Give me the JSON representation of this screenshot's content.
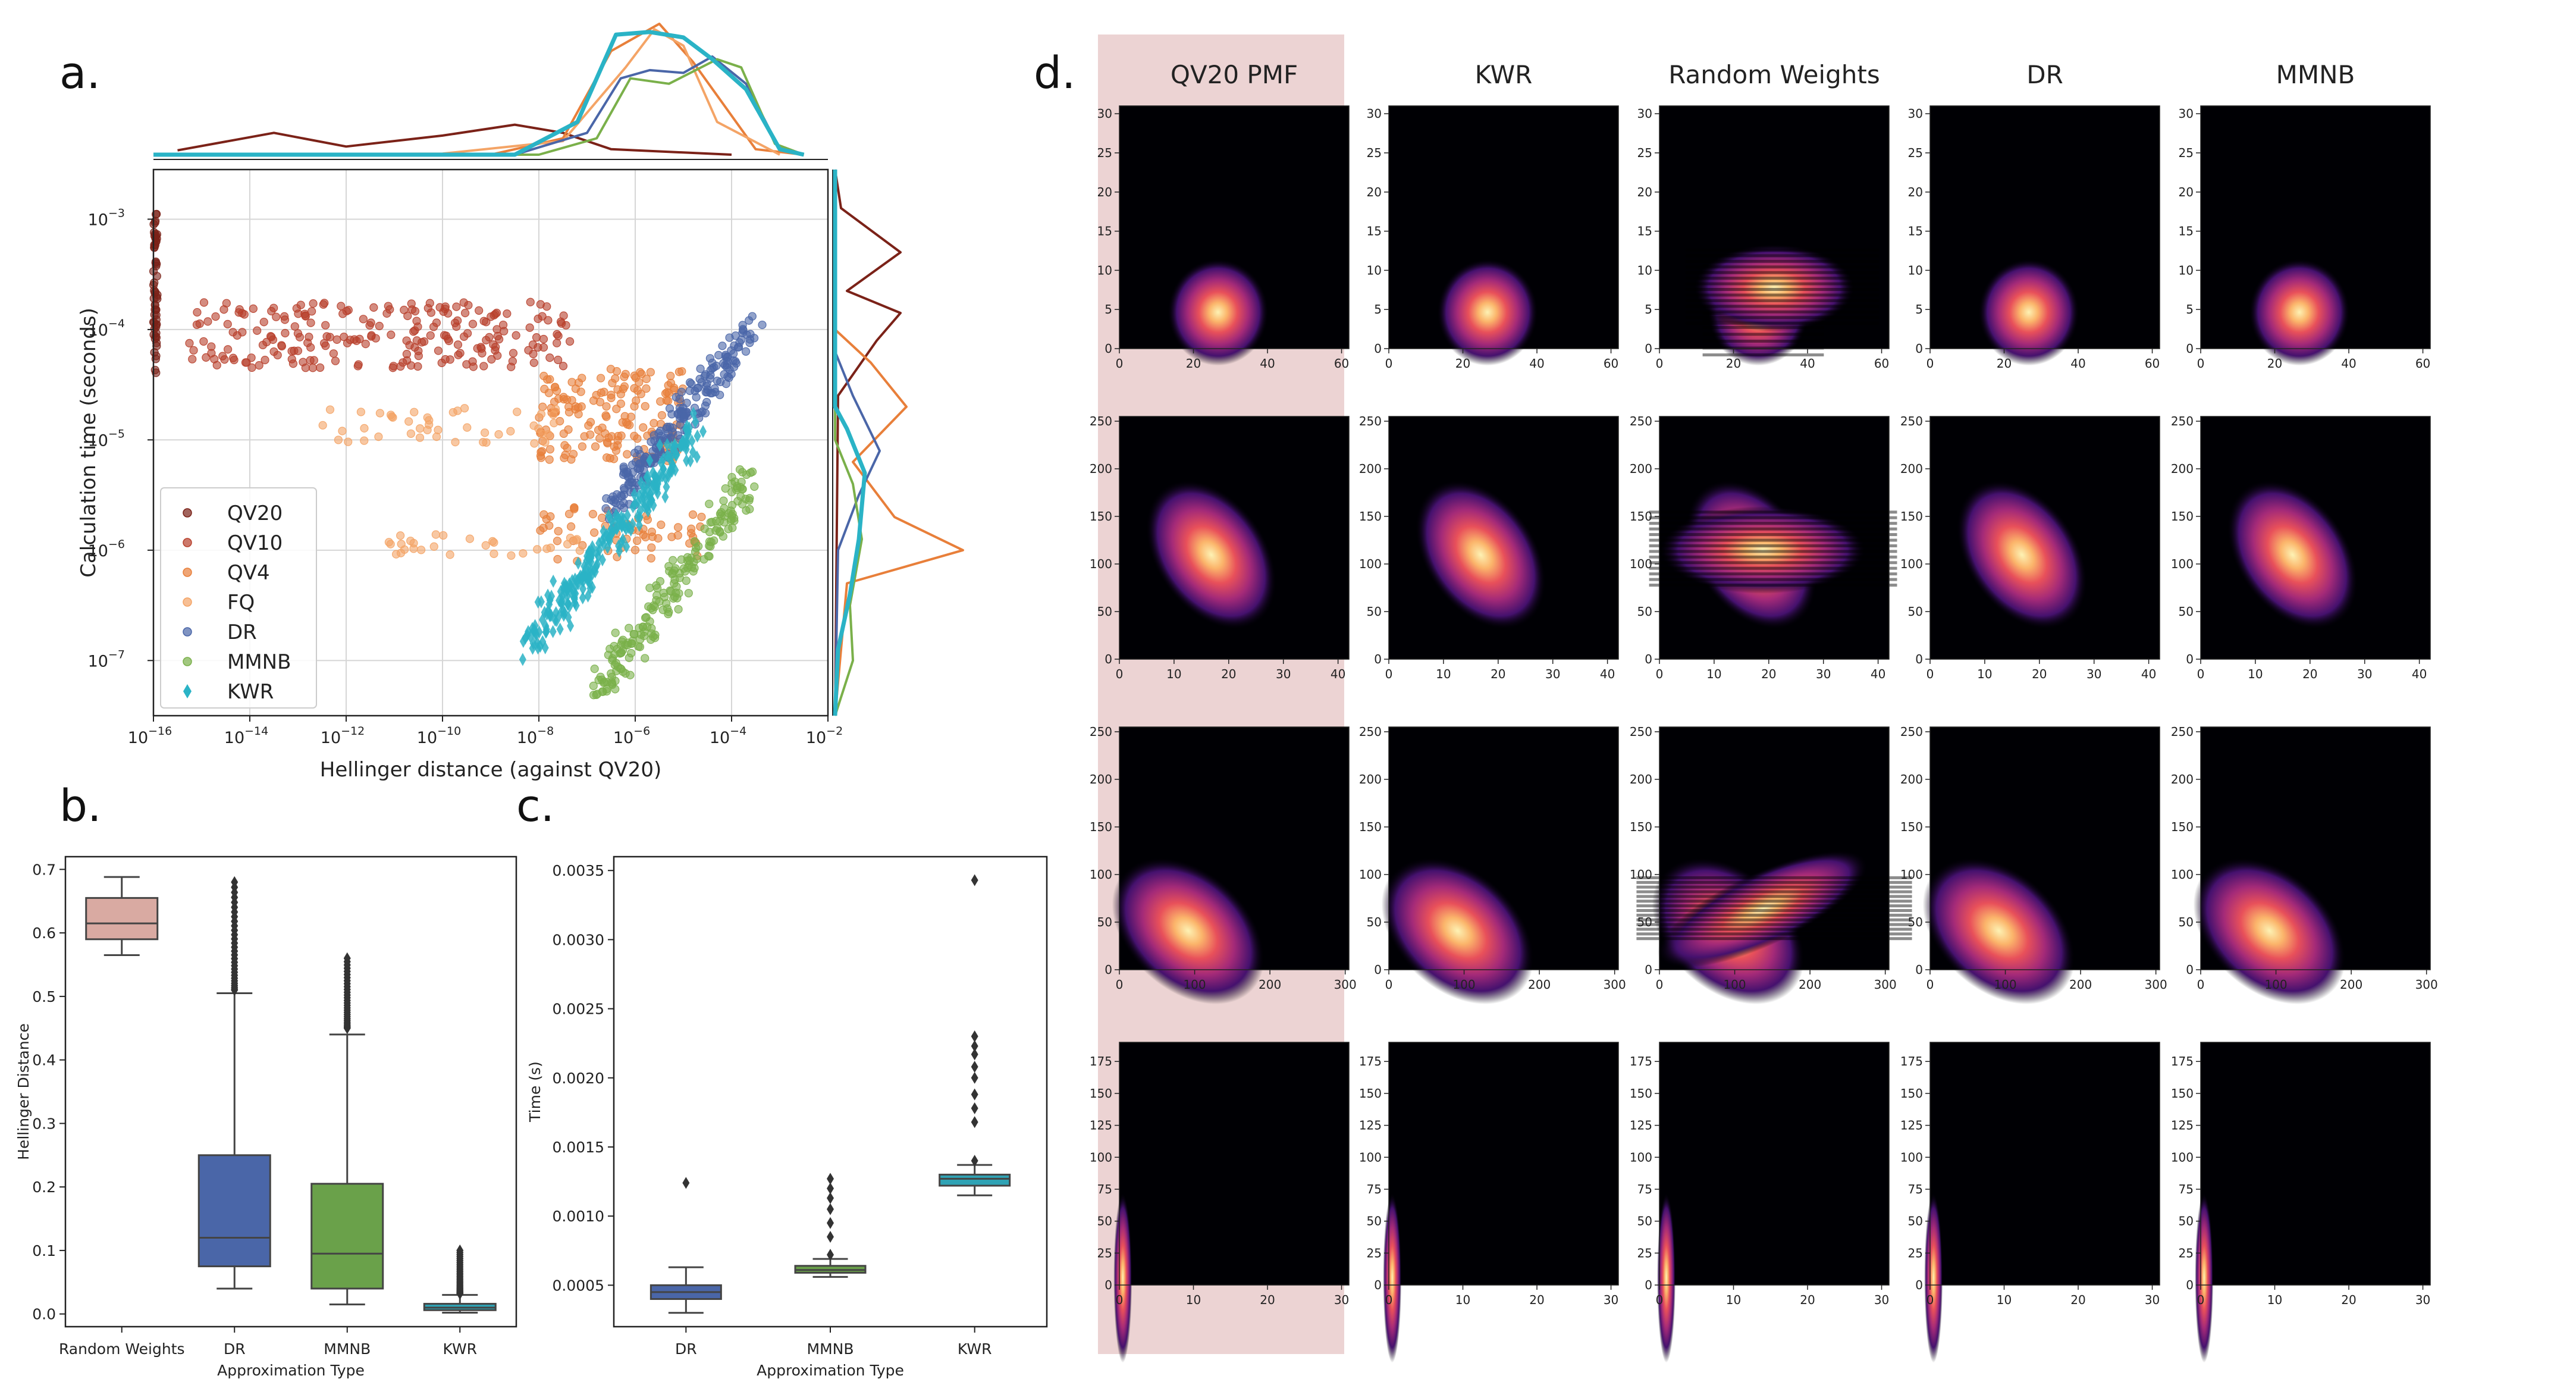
{
  "panels": {
    "a": "a.",
    "b": "b.",
    "c": "c.",
    "d": "d."
  },
  "colors": {
    "QV20": "#7b2218",
    "QV10": "#b8402c",
    "QV4": "#e87f3a",
    "FQ": "#f4a466",
    "DR": "#4a66a8",
    "MMNB": "#7ab04a",
    "KWR": "#2ab3c6",
    "box_rw": "#d9aaa2",
    "box_dr": "#4a66a8",
    "box_mmnb": "#6aa14a",
    "box_kwr": "#2fa3b5",
    "highlight": "#ecd3d3"
  },
  "chart_data": [
    {
      "id": "a",
      "type": "scatter",
      "xlabel": "Hellinger distance (against QV20)",
      "ylabel": "Calculation time (seconds)",
      "xscale": "log",
      "yscale": "log",
      "xlim_exp": [
        -16,
        -2
      ],
      "ylim_exp": [
        -7.5,
        -2.55
      ],
      "xticks": [
        "10",
        "10",
        "10",
        "10",
        "10",
        "10",
        "10",
        "10"
      ],
      "xtick_exps": [
        "-16",
        "-14",
        "-12",
        "-10",
        "-8",
        "-6",
        "-4",
        "-2"
      ],
      "yticks": [
        "10",
        "10",
        "10",
        "10",
        "10"
      ],
      "ytick_exps": [
        "-7",
        "-6",
        "-5",
        "-4",
        "-3"
      ],
      "grid": true,
      "legend_position": "lower-left",
      "series": [
        {
          "name": "QV20",
          "marker": "circle",
          "clusters": [
            {
              "x": [
                -16,
                -16
              ],
              "y": [
                -4.4,
                -2.95
              ],
              "n": 60
            }
          ]
        },
        {
          "name": "QV10",
          "marker": "circle",
          "clusters": [
            {
              "x": [
                -15.3,
                -7.3
              ],
              "y": [
                -4.35,
                -3.75
              ],
              "n": 230
            }
          ]
        },
        {
          "name": "QV4",
          "marker": "circle",
          "clusters": [
            {
              "x": [
                -8,
                -5
              ],
              "y": [
                -5.2,
                -4.35
              ],
              "n": 170
            },
            {
              "x": [
                -8,
                -4.5
              ],
              "y": [
                -6.1,
                -5.6
              ],
              "n": 60
            }
          ]
        },
        {
          "name": "FQ",
          "marker": "circle",
          "clusters": [
            {
              "x": [
                -12.5,
                -7.5
              ],
              "y": [
                -5.05,
                -4.7
              ],
              "n": 45
            },
            {
              "x": [
                -11.2,
                -7
              ],
              "y": [
                -6.05,
                -5.85
              ],
              "n": 30
            }
          ]
        },
        {
          "name": "DR",
          "marker": "circle",
          "clusters": [
            {
              "x": [
                -6.5,
                -3.6
              ],
              "y": [
                -5.6,
                -4.0
              ],
              "n": 220
            }
          ]
        },
        {
          "name": "MMNB",
          "marker": "circle",
          "clusters": [
            {
              "x": [
                -6.8,
                -3.6
              ],
              "y": [
                -7.3,
                -5.35
              ],
              "n": 200
            }
          ]
        },
        {
          "name": "KWR",
          "marker": "diamond",
          "clusters": [
            {
              "x": [
                -8.2,
                -4.7
              ],
              "y": [
                -6.85,
                -4.9
              ],
              "n": 260
            }
          ]
        }
      ],
      "marginal_top_order": [
        "QV20",
        "QV4",
        "FQ",
        "DR",
        "MMNB",
        "KWR"
      ],
      "marginal_right_order": [
        "QV20",
        "QV4",
        "DR",
        "MMNB",
        "KWR"
      ]
    },
    {
      "id": "b",
      "type": "box",
      "xlabel": "Approximation Type",
      "ylabel": "Hellinger Distance",
      "ylim": [
        -0.02,
        0.72
      ],
      "yticks": [
        "0.0",
        "0.1",
        "0.2",
        "0.3",
        "0.4",
        "0.5",
        "0.6",
        "0.7"
      ],
      "ytick_values": [
        0,
        0.1,
        0.2,
        0.3,
        0.4,
        0.5,
        0.6,
        0.7
      ],
      "categories": [
        "Random Weights",
        "DR",
        "MMNB",
        "KWR"
      ],
      "boxes": [
        {
          "min": 0.565,
          "q1": 0.59,
          "median": 0.615,
          "q3": 0.655,
          "max": 0.688,
          "outliers": []
        },
        {
          "min": 0.04,
          "q1": 0.075,
          "median": 0.12,
          "q3": 0.25,
          "max": 0.505,
          "outliers_range": [
            0.51,
            0.68
          ]
        },
        {
          "min": 0.015,
          "q1": 0.04,
          "median": 0.095,
          "q3": 0.205,
          "max": 0.44,
          "outliers_range": [
            0.45,
            0.56
          ]
        },
        {
          "min": 0.002,
          "q1": 0.006,
          "median": 0.01,
          "q3": 0.016,
          "max": 0.03,
          "outliers_range": [
            0.032,
            0.1
          ]
        }
      ]
    },
    {
      "id": "c",
      "type": "box",
      "xlabel": "Approximation Type",
      "ylabel": "Time (s)",
      "ylim": [
        0.0002,
        0.0036
      ],
      "yticks": [
        "0.0005",
        "0.0010",
        "0.0015",
        "0.0020",
        "0.0025",
        "0.0030",
        "0.0035"
      ],
      "ytick_values": [
        0.0005,
        0.001,
        0.0015,
        0.002,
        0.0025,
        0.003,
        0.0035
      ],
      "categories": [
        "DR",
        "MMNB",
        "KWR"
      ],
      "boxes": [
        {
          "min": 0.0003,
          "q1": 0.0004,
          "median": 0.00045,
          "q3": 0.0005,
          "max": 0.00063,
          "outliers": [
            0.00124
          ]
        },
        {
          "min": 0.00056,
          "q1": 0.00059,
          "median": 0.00061,
          "q3": 0.00064,
          "max": 0.00069,
          "outliers": [
            0.00072,
            0.00085,
            0.00095,
            0.00105,
            0.00113,
            0.0012,
            0.00127
          ]
        },
        {
          "min": 0.00115,
          "q1": 0.00122,
          "median": 0.00127,
          "q3": 0.0013,
          "max": 0.00137,
          "outliers": [
            0.0014,
            0.00168,
            0.00178,
            0.00188,
            0.002,
            0.00208,
            0.00217,
            0.00223,
            0.0023,
            0.00343
          ]
        }
      ]
    },
    {
      "id": "d",
      "type": "heatmap",
      "columns": [
        "QV20 PMF",
        "KWR",
        "Random Weights",
        "DR",
        "MMNB"
      ],
      "highlight_column": 0,
      "colormap": "magma",
      "rows": [
        {
          "xticks": [
            "0",
            "20",
            "40",
            "60"
          ],
          "xmax": 62,
          "yticks": [
            "0",
            "5",
            "10",
            "15",
            "20",
            "25",
            "30"
          ],
          "ymax": 31
        },
        {
          "xticks": [
            "0",
            "10",
            "20",
            "30",
            "40"
          ],
          "xmax": 42,
          "yticks": [
            "0",
            "50",
            "100",
            "150",
            "200",
            "250"
          ],
          "ymax": 255
        },
        {
          "xticks": [
            "0",
            "100",
            "200",
            "300"
          ],
          "xmax": 305,
          "yticks": [
            "0",
            "50",
            "100",
            "150",
            "200",
            "250"
          ],
          "ymax": 255
        },
        {
          "xticks": [
            "0",
            "10",
            "20",
            "30"
          ],
          "xmax": 31,
          "yticks": [
            "0",
            "25",
            "50",
            "75",
            "100",
            "125",
            "150",
            "175"
          ],
          "ymax": 190
        }
      ]
    }
  ]
}
